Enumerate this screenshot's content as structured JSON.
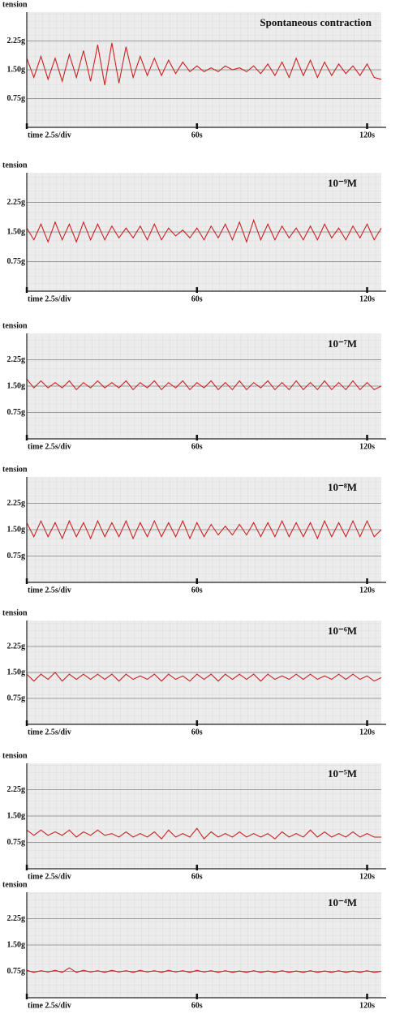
{
  "chart_data": [
    {
      "type": "line",
      "title": "Spontaneous contraction",
      "y_label": "tension",
      "color": "#cc2222",
      "grid": true,
      "xlim": [
        0,
        125
      ],
      "ylim": [
        0,
        3
      ],
      "xticks": [
        {
          "value": 0,
          "label": "time 2.5s/div"
        },
        {
          "value": 60,
          "label": "60s"
        },
        {
          "value": 120,
          "label": "120s"
        }
      ],
      "yticks": [
        {
          "value": 0.75,
          "label": "0.75g"
        },
        {
          "value": 1.5,
          "label": "1.50g"
        },
        {
          "value": 2.25,
          "label": "2.25g"
        }
      ],
      "x": [
        0,
        2.5,
        5,
        7.5,
        10,
        12.5,
        15,
        17.5,
        20,
        22.5,
        25,
        27.5,
        30,
        32.5,
        35,
        37.5,
        40,
        42.5,
        45,
        47.5,
        50,
        52.5,
        55,
        57.5,
        60,
        62.5,
        65,
        67.5,
        70,
        72.5,
        75,
        77.5,
        80,
        82.5,
        85,
        87.5,
        90,
        92.5,
        95,
        97.5,
        100,
        102.5,
        105,
        107.5,
        110,
        112.5,
        115,
        117.5,
        120,
        122.5,
        125
      ],
      "values": [
        1.8,
        1.3,
        1.85,
        1.25,
        1.8,
        1.2,
        1.9,
        1.3,
        2.0,
        1.2,
        2.15,
        1.1,
        2.2,
        1.15,
        2.1,
        1.3,
        1.85,
        1.35,
        1.8,
        1.35,
        1.75,
        1.4,
        1.7,
        1.45,
        1.6,
        1.45,
        1.55,
        1.45,
        1.6,
        1.5,
        1.55,
        1.45,
        1.6,
        1.4,
        1.65,
        1.35,
        1.7,
        1.3,
        1.8,
        1.35,
        1.75,
        1.3,
        1.7,
        1.35,
        1.65,
        1.4,
        1.6,
        1.35,
        1.65,
        1.3,
        1.25
      ]
    },
    {
      "type": "line",
      "title": "10⁻⁹M",
      "y_label": "tension",
      "color": "#cc2222",
      "grid": true,
      "xlim": [
        0,
        125
      ],
      "ylim": [
        0,
        3
      ],
      "xticks": [
        {
          "value": 0,
          "label": "time 2.5s/div"
        },
        {
          "value": 60,
          "label": "60s"
        },
        {
          "value": 120,
          "label": "120s"
        }
      ],
      "yticks": [
        {
          "value": 0.75,
          "label": "0.75g"
        },
        {
          "value": 1.5,
          "label": "1.50g"
        },
        {
          "value": 2.25,
          "label": "2.25g"
        }
      ],
      "x": [
        0,
        2.5,
        5,
        7.5,
        10,
        12.5,
        15,
        17.5,
        20,
        22.5,
        25,
        27.5,
        30,
        32.5,
        35,
        37.5,
        40,
        42.5,
        45,
        47.5,
        50,
        52.5,
        55,
        57.5,
        60,
        62.5,
        65,
        67.5,
        70,
        72.5,
        75,
        77.5,
        80,
        82.5,
        85,
        87.5,
        90,
        92.5,
        95,
        97.5,
        100,
        102.5,
        105,
        107.5,
        110,
        112.5,
        115,
        117.5,
        120,
        122.5,
        125
      ],
      "values": [
        1.6,
        1.3,
        1.7,
        1.25,
        1.75,
        1.3,
        1.7,
        1.25,
        1.75,
        1.3,
        1.7,
        1.3,
        1.65,
        1.35,
        1.6,
        1.35,
        1.65,
        1.3,
        1.7,
        1.3,
        1.6,
        1.4,
        1.55,
        1.35,
        1.6,
        1.3,
        1.65,
        1.35,
        1.7,
        1.3,
        1.75,
        1.25,
        1.8,
        1.3,
        1.7,
        1.3,
        1.65,
        1.35,
        1.6,
        1.3,
        1.65,
        1.3,
        1.7,
        1.35,
        1.6,
        1.3,
        1.65,
        1.35,
        1.7,
        1.3,
        1.6
      ]
    },
    {
      "type": "line",
      "title": "10⁻⁷M",
      "y_label": "tension",
      "color": "#cc2222",
      "grid": true,
      "xlim": [
        0,
        125
      ],
      "ylim": [
        0,
        3
      ],
      "xticks": [
        {
          "value": 0,
          "label": "time 2.5s/div"
        },
        {
          "value": 60,
          "label": "60s"
        },
        {
          "value": 120,
          "label": "120s"
        }
      ],
      "yticks": [
        {
          "value": 0.75,
          "label": "0.75g"
        },
        {
          "value": 1.5,
          "label": "1.50g"
        },
        {
          "value": 2.25,
          "label": "2.25g"
        }
      ],
      "x": [
        0,
        2.5,
        5,
        7.5,
        10,
        12.5,
        15,
        17.5,
        20,
        22.5,
        25,
        27.5,
        30,
        32.5,
        35,
        37.5,
        40,
        42.5,
        45,
        47.5,
        50,
        52.5,
        55,
        57.5,
        60,
        62.5,
        65,
        67.5,
        70,
        72.5,
        75,
        77.5,
        80,
        82.5,
        85,
        87.5,
        90,
        92.5,
        95,
        97.5,
        100,
        102.5,
        105,
        107.5,
        110,
        112.5,
        115,
        117.5,
        120,
        122.5,
        125
      ],
      "values": [
        1.7,
        1.45,
        1.65,
        1.45,
        1.6,
        1.45,
        1.65,
        1.4,
        1.6,
        1.45,
        1.65,
        1.45,
        1.6,
        1.45,
        1.65,
        1.4,
        1.6,
        1.45,
        1.65,
        1.4,
        1.6,
        1.45,
        1.65,
        1.4,
        1.6,
        1.45,
        1.65,
        1.4,
        1.6,
        1.4,
        1.65,
        1.4,
        1.6,
        1.45,
        1.65,
        1.4,
        1.6,
        1.4,
        1.65,
        1.4,
        1.6,
        1.4,
        1.65,
        1.4,
        1.6,
        1.4,
        1.65,
        1.4,
        1.6,
        1.4,
        1.5
      ]
    },
    {
      "type": "line",
      "title": "10⁻⁸M",
      "y_label": "tension",
      "color": "#cc2222",
      "grid": true,
      "xlim": [
        0,
        125
      ],
      "ylim": [
        0,
        3
      ],
      "xticks": [
        {
          "value": 0,
          "label": "time 2.5s/div"
        },
        {
          "value": 60,
          "label": "60s"
        },
        {
          "value": 120,
          "label": "120s"
        }
      ],
      "yticks": [
        {
          "value": 0.75,
          "label": "0.75g"
        },
        {
          "value": 1.5,
          "label": "1.50g"
        },
        {
          "value": 2.25,
          "label": "2.25g"
        }
      ],
      "x": [
        0,
        2.5,
        5,
        7.5,
        10,
        12.5,
        15,
        17.5,
        20,
        22.5,
        25,
        27.5,
        30,
        32.5,
        35,
        37.5,
        40,
        42.5,
        45,
        47.5,
        50,
        52.5,
        55,
        57.5,
        60,
        62.5,
        65,
        67.5,
        70,
        72.5,
        75,
        77.5,
        80,
        82.5,
        85,
        87.5,
        90,
        92.5,
        95,
        97.5,
        100,
        102.5,
        105,
        107.5,
        110,
        112.5,
        115,
        117.5,
        120,
        122.5,
        125
      ],
      "values": [
        1.7,
        1.3,
        1.75,
        1.3,
        1.7,
        1.25,
        1.75,
        1.3,
        1.7,
        1.25,
        1.75,
        1.3,
        1.7,
        1.3,
        1.75,
        1.25,
        1.7,
        1.3,
        1.75,
        1.3,
        1.7,
        1.3,
        1.75,
        1.25,
        1.7,
        1.3,
        1.65,
        1.35,
        1.6,
        1.35,
        1.65,
        1.35,
        1.7,
        1.3,
        1.7,
        1.3,
        1.75,
        1.3,
        1.7,
        1.3,
        1.7,
        1.25,
        1.75,
        1.3,
        1.7,
        1.3,
        1.75,
        1.3,
        1.75,
        1.3,
        1.5
      ]
    },
    {
      "type": "line",
      "title": "10⁻⁶M",
      "y_label": "tension",
      "color": "#cc2222",
      "grid": true,
      "xlim": [
        0,
        125
      ],
      "ylim": [
        0,
        3
      ],
      "xticks": [
        {
          "value": 0,
          "label": "time 2.5s/div"
        },
        {
          "value": 60,
          "label": "60s"
        },
        {
          "value": 120,
          "label": "120s"
        }
      ],
      "yticks": [
        {
          "value": 0.75,
          "label": "0.75g"
        },
        {
          "value": 1.5,
          "label": "1.50g"
        },
        {
          "value": 2.25,
          "label": "2.25g"
        }
      ],
      "x": [
        0,
        2.5,
        5,
        7.5,
        10,
        12.5,
        15,
        17.5,
        20,
        22.5,
        25,
        27.5,
        30,
        32.5,
        35,
        37.5,
        40,
        42.5,
        45,
        47.5,
        50,
        52.5,
        55,
        57.5,
        60,
        62.5,
        65,
        67.5,
        70,
        72.5,
        75,
        77.5,
        80,
        82.5,
        85,
        87.5,
        90,
        92.5,
        95,
        97.5,
        100,
        102.5,
        105,
        107.5,
        110,
        112.5,
        115,
        117.5,
        120,
        122.5,
        125
      ],
      "values": [
        1.45,
        1.25,
        1.45,
        1.3,
        1.5,
        1.25,
        1.45,
        1.3,
        1.45,
        1.3,
        1.45,
        1.3,
        1.45,
        1.25,
        1.45,
        1.3,
        1.4,
        1.3,
        1.45,
        1.25,
        1.45,
        1.3,
        1.4,
        1.25,
        1.45,
        1.3,
        1.45,
        1.25,
        1.45,
        1.3,
        1.45,
        1.3,
        1.45,
        1.25,
        1.45,
        1.3,
        1.4,
        1.3,
        1.45,
        1.3,
        1.45,
        1.3,
        1.4,
        1.3,
        1.45,
        1.3,
        1.45,
        1.3,
        1.4,
        1.25,
        1.35
      ]
    },
    {
      "type": "line",
      "title": "10⁻⁵M",
      "y_label": "tension",
      "color": "#cc2222",
      "grid": true,
      "xlim": [
        0,
        125
      ],
      "ylim": [
        0,
        3
      ],
      "xticks": [
        {
          "value": 0,
          "label": "time 2.5s/div"
        },
        {
          "value": 60,
          "label": "60s"
        },
        {
          "value": 120,
          "label": "120s"
        }
      ],
      "yticks": [
        {
          "value": 0.75,
          "label": "0.75g"
        },
        {
          "value": 1.5,
          "label": "1.50g"
        },
        {
          "value": 2.25,
          "label": "2.25g"
        }
      ],
      "x": [
        0,
        2.5,
        5,
        7.5,
        10,
        12.5,
        15,
        17.5,
        20,
        22.5,
        25,
        27.5,
        30,
        32.5,
        35,
        37.5,
        40,
        42.5,
        45,
        47.5,
        50,
        52.5,
        55,
        57.5,
        60,
        62.5,
        65,
        67.5,
        70,
        72.5,
        75,
        77.5,
        80,
        82.5,
        85,
        87.5,
        90,
        92.5,
        95,
        97.5,
        100,
        102.5,
        105,
        107.5,
        110,
        112.5,
        115,
        117.5,
        120,
        122.5,
        125
      ],
      "values": [
        1.1,
        0.95,
        1.1,
        0.95,
        1.05,
        0.95,
        1.1,
        0.9,
        1.05,
        0.95,
        1.1,
        0.95,
        1.0,
        0.9,
        1.05,
        0.9,
        1.0,
        0.9,
        1.05,
        0.85,
        1.1,
        0.9,
        1.0,
        0.9,
        1.15,
        0.85,
        1.05,
        0.9,
        1.0,
        0.9,
        1.05,
        0.9,
        1.0,
        0.9,
        1.0,
        0.85,
        1.05,
        0.9,
        1.0,
        0.9,
        1.1,
        0.9,
        1.05,
        0.9,
        1.0,
        0.9,
        1.05,
        0.9,
        1.0,
        0.9,
        0.9
      ]
    },
    {
      "type": "line",
      "title": "10⁻⁴M",
      "y_label": "tension",
      "color": "#cc2222",
      "grid": true,
      "xlim": [
        0,
        125
      ],
      "ylim": [
        0,
        3
      ],
      "xticks": [
        {
          "value": 0,
          "label": "time 2.5s/div"
        },
        {
          "value": 60,
          "label": "60s"
        },
        {
          "value": 120,
          "label": "120s"
        }
      ],
      "yticks": [
        {
          "value": 0.75,
          "label": "0.75g"
        },
        {
          "value": 1.5,
          "label": "1.50g"
        },
        {
          "value": 2.25,
          "label": "2.25g"
        }
      ],
      "x": [
        0,
        2.5,
        5,
        7.5,
        10,
        12.5,
        15,
        17.5,
        20,
        22.5,
        25,
        27.5,
        30,
        32.5,
        35,
        37.5,
        40,
        42.5,
        45,
        47.5,
        50,
        52.5,
        55,
        57.5,
        60,
        62.5,
        65,
        67.5,
        70,
        72.5,
        75,
        77.5,
        80,
        82.5,
        85,
        87.5,
        90,
        92.5,
        95,
        97.5,
        100,
        102.5,
        105,
        107.5,
        110,
        112.5,
        115,
        117.5,
        120,
        122.5,
        125
      ],
      "values": [
        0.78,
        0.72,
        0.77,
        0.73,
        0.78,
        0.72,
        0.85,
        0.72,
        0.78,
        0.73,
        0.77,
        0.72,
        0.78,
        0.73,
        0.77,
        0.72,
        0.78,
        0.73,
        0.77,
        0.72,
        0.78,
        0.73,
        0.77,
        0.72,
        0.78,
        0.73,
        0.77,
        0.72,
        0.77,
        0.72,
        0.76,
        0.72,
        0.77,
        0.72,
        0.76,
        0.72,
        0.77,
        0.72,
        0.76,
        0.72,
        0.77,
        0.72,
        0.76,
        0.72,
        0.77,
        0.72,
        0.76,
        0.72,
        0.77,
        0.72,
        0.75
      ]
    }
  ]
}
